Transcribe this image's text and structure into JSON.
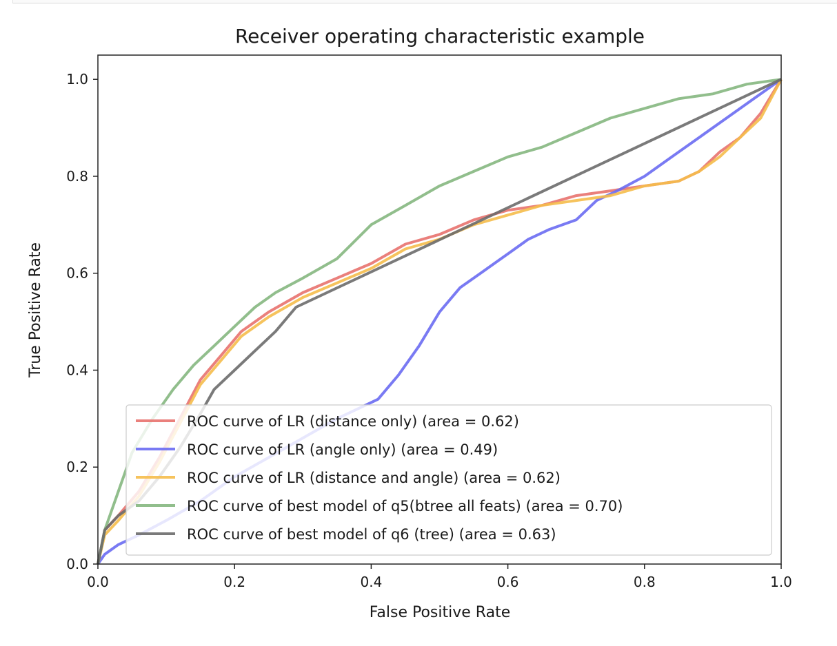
{
  "chart_data": {
    "type": "line",
    "title": "Receiver operating characteristic example",
    "xlabel": "False Positive Rate",
    "ylabel": "True Positive Rate",
    "xlim": [
      0.0,
      1.0
    ],
    "ylim": [
      0.0,
      1.05
    ],
    "xticks": [
      0.0,
      0.2,
      0.4,
      0.6,
      0.8,
      1.0
    ],
    "yticks": [
      0.0,
      0.2,
      0.4,
      0.6,
      0.8,
      1.0
    ],
    "xtick_labels": [
      "0.0",
      "0.2",
      "0.4",
      "0.6",
      "0.8",
      "1.0"
    ],
    "ytick_labels": [
      "0.0",
      "0.2",
      "0.4",
      "0.6",
      "0.8",
      "1.0"
    ],
    "legend_position": "lower-right",
    "series": [
      {
        "name": "ROC curve of LR (distance only) (area = 0.62)",
        "color": "#e8726e",
        "x": [
          0.0,
          0.01,
          0.03,
          0.06,
          0.09,
          0.12,
          0.15,
          0.18,
          0.21,
          0.25,
          0.3,
          0.35,
          0.4,
          0.45,
          0.5,
          0.55,
          0.6,
          0.65,
          0.7,
          0.75,
          0.8,
          0.85,
          0.88,
          0.91,
          0.94,
          0.97,
          1.0
        ],
        "y": [
          0.0,
          0.07,
          0.1,
          0.15,
          0.22,
          0.3,
          0.38,
          0.43,
          0.48,
          0.52,
          0.56,
          0.59,
          0.62,
          0.66,
          0.68,
          0.71,
          0.73,
          0.74,
          0.76,
          0.77,
          0.78,
          0.79,
          0.81,
          0.85,
          0.88,
          0.93,
          1.0
        ]
      },
      {
        "name": "ROC curve of LR (angle only) (area = 0.49)",
        "color": "#6a6cf2",
        "x": [
          0.0,
          0.01,
          0.03,
          0.06,
          0.1,
          0.15,
          0.2,
          0.25,
          0.3,
          0.35,
          0.38,
          0.41,
          0.44,
          0.47,
          0.5,
          0.53,
          0.56,
          0.6,
          0.63,
          0.66,
          0.7,
          0.73,
          0.76,
          0.8,
          0.84,
          0.88,
          0.92,
          0.96,
          1.0
        ],
        "y": [
          0.0,
          0.02,
          0.04,
          0.06,
          0.09,
          0.13,
          0.18,
          0.22,
          0.26,
          0.3,
          0.32,
          0.34,
          0.39,
          0.45,
          0.52,
          0.57,
          0.6,
          0.64,
          0.67,
          0.69,
          0.71,
          0.75,
          0.77,
          0.8,
          0.84,
          0.88,
          0.92,
          0.96,
          1.0
        ]
      },
      {
        "name": "ROC curve of LR (distance and angle) (area = 0.62)",
        "color": "#f5bc4b",
        "x": [
          0.0,
          0.01,
          0.03,
          0.06,
          0.09,
          0.12,
          0.15,
          0.18,
          0.21,
          0.25,
          0.3,
          0.35,
          0.4,
          0.45,
          0.5,
          0.55,
          0.6,
          0.65,
          0.7,
          0.75,
          0.8,
          0.85,
          0.88,
          0.91,
          0.94,
          0.97,
          1.0
        ],
        "y": [
          0.0,
          0.06,
          0.09,
          0.14,
          0.21,
          0.29,
          0.37,
          0.42,
          0.47,
          0.51,
          0.55,
          0.58,
          0.61,
          0.65,
          0.67,
          0.7,
          0.72,
          0.74,
          0.75,
          0.76,
          0.78,
          0.79,
          0.81,
          0.84,
          0.88,
          0.92,
          1.0
        ]
      },
      {
        "name": "ROC curve of best model of q5(btree all feats) (area = 0.70)",
        "color": "#85b77f",
        "x": [
          0.0,
          0.01,
          0.03,
          0.05,
          0.08,
          0.11,
          0.14,
          0.17,
          0.2,
          0.23,
          0.26,
          0.3,
          0.35,
          0.4,
          0.45,
          0.5,
          0.55,
          0.6,
          0.65,
          0.7,
          0.75,
          0.8,
          0.85,
          0.9,
          0.95,
          1.0
        ],
        "y": [
          0.0,
          0.07,
          0.15,
          0.23,
          0.3,
          0.36,
          0.41,
          0.45,
          0.49,
          0.53,
          0.56,
          0.59,
          0.63,
          0.7,
          0.74,
          0.78,
          0.81,
          0.84,
          0.86,
          0.89,
          0.92,
          0.94,
          0.96,
          0.97,
          0.99,
          1.0
        ]
      },
      {
        "name": "ROC curve of best model of q6 (tree) (area = 0.63)",
        "color": "#6b6b6b",
        "x": [
          0.0,
          0.01,
          0.03,
          0.06,
          0.09,
          0.12,
          0.15,
          0.17,
          0.2,
          0.23,
          0.26,
          0.29,
          1.0
        ],
        "y": [
          0.0,
          0.07,
          0.1,
          0.13,
          0.18,
          0.24,
          0.31,
          0.36,
          0.4,
          0.44,
          0.48,
          0.53,
          1.0
        ]
      }
    ]
  }
}
